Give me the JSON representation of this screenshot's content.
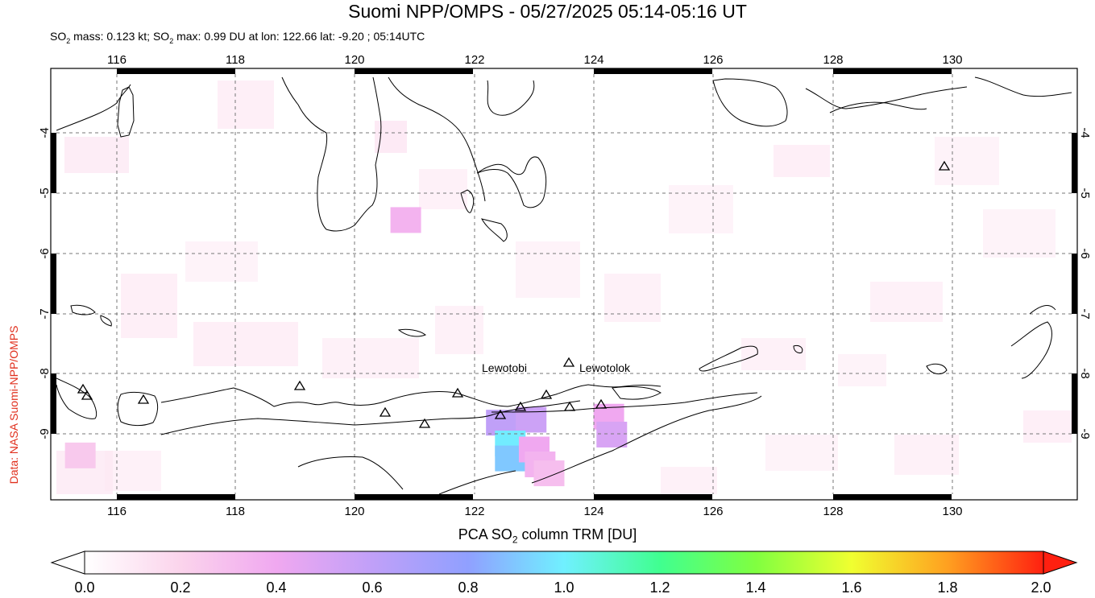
{
  "title": "Suomi NPP/OMPS - 05/27/2025 05:14-05:16 UT",
  "subtitle": {
    "parts": [
      "SO",
      "2",
      " mass: 0.123 kt; SO",
      "2",
      " max: 0.99 DU at lon: 122.66 lat: -9.20 ; 05:14UTC"
    ]
  },
  "credit": "Data: NASA Suomi-NPP/OMPS",
  "colorbar": {
    "label_parts": [
      "PCA SO",
      "2",
      " column TRM [DU]"
    ],
    "ticks": [
      "0.0",
      "0.2",
      "0.4",
      "0.6",
      "0.8",
      "1.0",
      "1.2",
      "1.4",
      "1.6",
      "1.8",
      "2.0"
    ]
  },
  "map": {
    "lon_labels": [
      "116",
      "118",
      "120",
      "122",
      "124",
      "126",
      "128",
      "130"
    ],
    "lat_labels": [
      "-4",
      "-5",
      "-6",
      "-7",
      "-8",
      "-9"
    ],
    "lon_range": [
      115.0,
      132.0
    ],
    "lat_range": [
      -10.05,
      -3.0
    ],
    "volcano_labels": [
      "Lewotobi",
      "Lewotolok"
    ],
    "so2_pixels": [
      {
        "lon": 122.45,
        "lat": -8.85,
        "du": 0.6
      },
      {
        "lon": 122.95,
        "lat": -8.8,
        "du": 0.55
      },
      {
        "lon": 122.6,
        "lat": -9.2,
        "du": 0.99
      },
      {
        "lon": 122.6,
        "lat": -9.45,
        "du": 0.9
      },
      {
        "lon": 123.0,
        "lat": -9.3,
        "du": 0.4
      },
      {
        "lon": 123.1,
        "lat": -9.55,
        "du": 0.35
      },
      {
        "lon": 124.25,
        "lat": -8.75,
        "du": 0.4
      },
      {
        "lon": 124.3,
        "lat": -9.05,
        "du": 0.5
      },
      {
        "lon": 120.85,
        "lat": -5.45,
        "du": 0.35
      },
      {
        "lon": 115.4,
        "lat": -9.4,
        "du": 0.25
      },
      {
        "lon": 123.25,
        "lat": -9.7,
        "du": 0.3
      }
    ]
  },
  "colors": {
    "credit": "#e0301e",
    "scale": [
      "#ffffff",
      "#fbd4ec",
      "#f0a8f0",
      "#c0a0f8",
      "#90a0ff",
      "#70f0ff",
      "#40ff90",
      "#80ff40",
      "#f0ff30",
      "#ffa020",
      "#ff2010"
    ]
  }
}
